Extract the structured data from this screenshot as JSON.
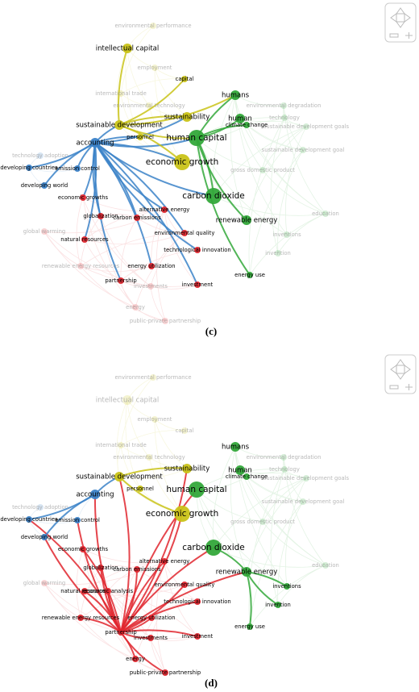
{
  "figure": {
    "panels": [
      {
        "caption": "(c)",
        "nodes": [
          "environmental performance",
          "intellectual capital",
          "employment",
          "capital",
          "international trade",
          "environmental technology",
          "humans",
          "environmental degradation",
          "sustainable development",
          "sustainability",
          "human",
          "technology",
          "sustainable development goals",
          "accounting",
          "personnel",
          "human capital",
          "climate change",
          "sustainable development goal",
          "technology adoption",
          "developing countries",
          "emission control",
          "economic growth",
          "gross domestic product",
          "developing world",
          "economic growths",
          "carbon dioxide",
          "education",
          "global warming",
          "alternative energy",
          "carbon emissions",
          "globalization",
          "renewable energy",
          "natural resources",
          "environmental quality",
          "inventions",
          "technological innovation",
          "invention",
          "renewable energy resources",
          "energy utilization",
          "partnership",
          "investments",
          "investment",
          "energy use",
          "energy",
          "public-private partnership"
        ]
      },
      {
        "caption": "(d)",
        "nodes": [
          "environmental performance",
          "intellectual capital",
          "employment",
          "capital",
          "international trade",
          "environmental technology",
          "humans",
          "environmental degradation",
          "sustainable development",
          "sustainability",
          "human",
          "technology",
          "sustainable development goals",
          "accounting",
          "personnel",
          "human capital",
          "climate change",
          "sustainable development goal",
          "technology adoption",
          "developing countries",
          "emission control",
          "economic growth",
          "gross domestic product",
          "developing world",
          "economic growths",
          "carbon dioxide",
          "education",
          "global warming",
          "alternative energy",
          "carbon emissions",
          "globalization",
          "renewable energy",
          "natural resources",
          "environmental quality",
          "inventions",
          "technological innovation",
          "invention",
          "renewable energy resources",
          "energy utilization",
          "partnership",
          "investments",
          "investment",
          "energy use",
          "energy",
          "public-private partnership",
          "economic analysis"
        ]
      }
    ]
  }
}
